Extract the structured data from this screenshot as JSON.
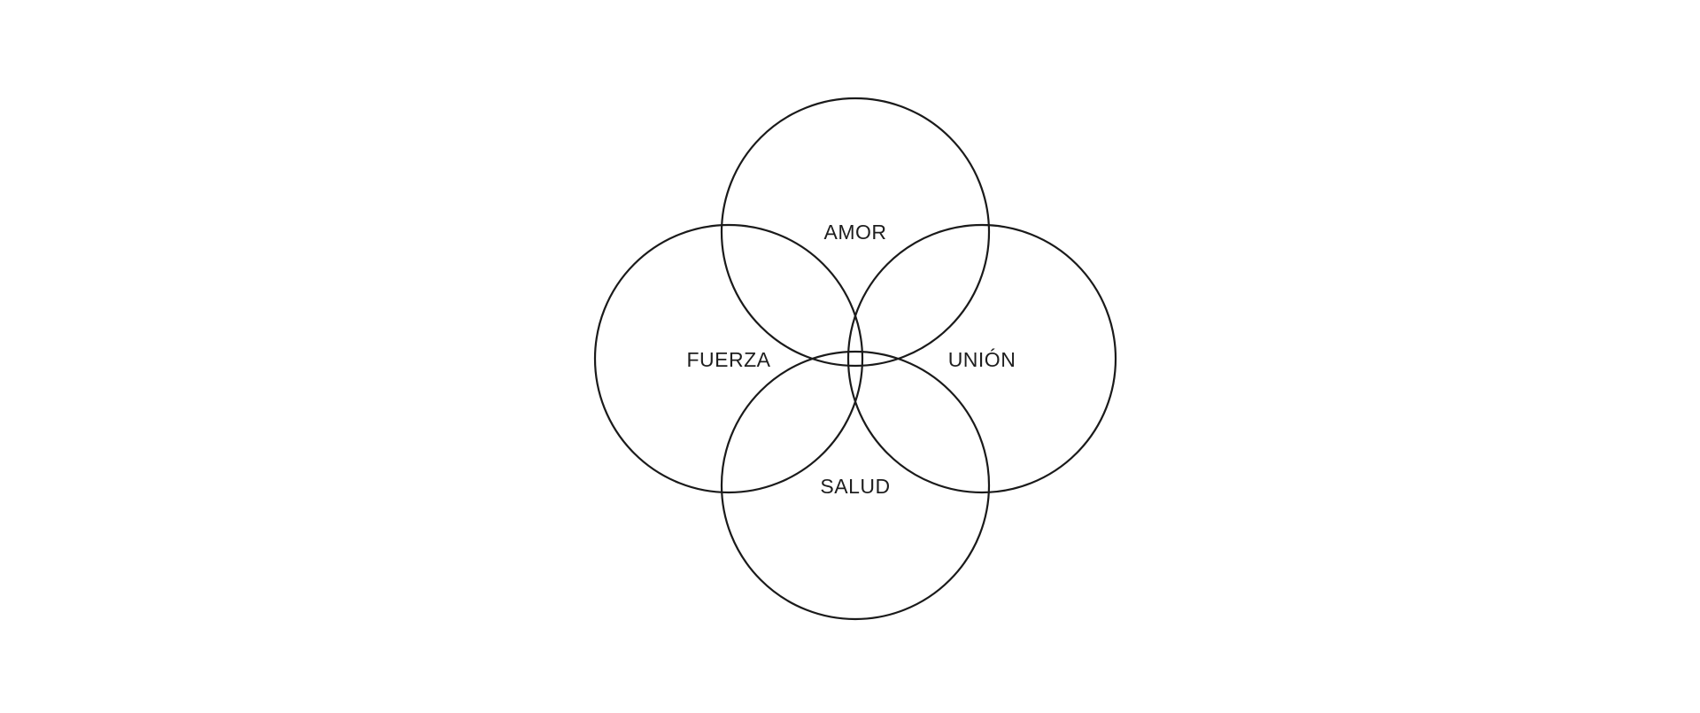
{
  "diagram": {
    "labels": {
      "amor": "AMOR",
      "fuerza": "FUERZA",
      "union": "UNIÓN",
      "salud": "SALUD"
    },
    "stroke_color": "#1a1a1a",
    "background_color": "#ffffff"
  }
}
